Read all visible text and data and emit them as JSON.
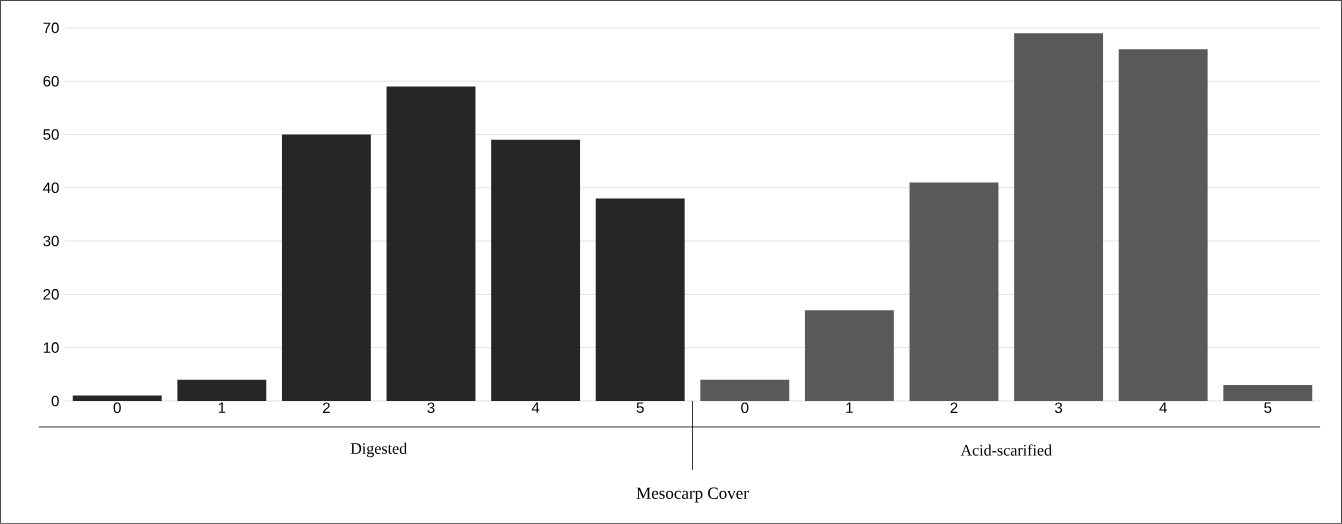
{
  "chart_data": {
    "type": "bar",
    "categories": [
      "0",
      "1",
      "2",
      "3",
      "4",
      "5",
      "0",
      "1",
      "2",
      "3",
      "4",
      "5"
    ],
    "values": [
      1,
      4,
      50,
      59,
      49,
      38,
      4,
      17,
      41,
      69,
      66,
      3
    ],
    "colors": [
      "#262626",
      "#262626",
      "#262626",
      "#262626",
      "#262626",
      "#262626",
      "#595959",
      "#595959",
      "#595959",
      "#595959",
      "#595959",
      "#595959"
    ],
    "annotations": [
      "Digested",
      "Acid-scarified",
      "Mesocarp Cover"
    ],
    "ylim": [
      0,
      70
    ],
    "yticks": [
      0,
      10,
      20,
      30,
      40,
      50,
      60,
      70
    ],
    "grid": "y"
  }
}
